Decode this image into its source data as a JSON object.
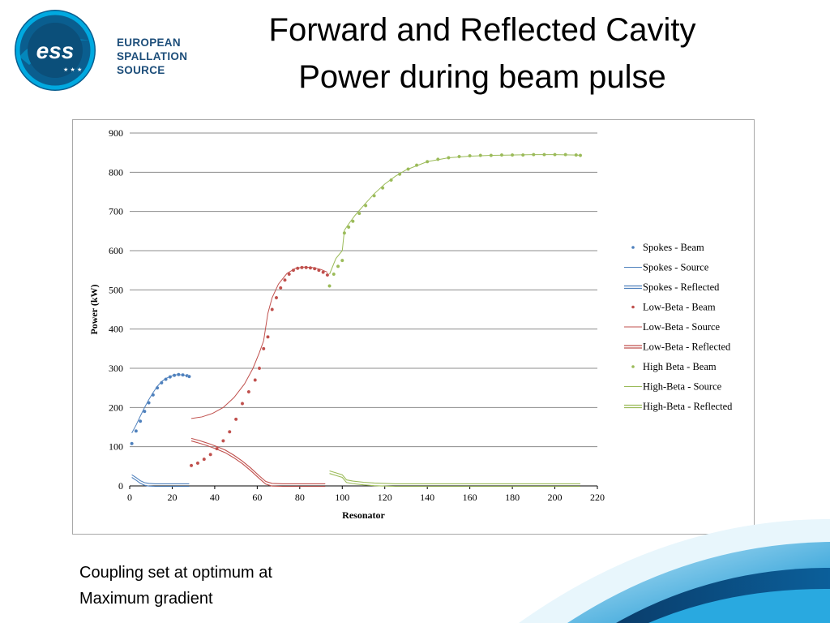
{
  "slide": {
    "title_line1": "Forward and Reflected Cavity",
    "title_line2": "Power during beam pulse",
    "caption_line1": "Coupling set at optimum at",
    "caption_line2": "Maximum gradient"
  },
  "logo": {
    "mark": "ess",
    "line1": "EUROPEAN",
    "line2": "SPALLATION",
    "line3": "SOURCE"
  },
  "colors": {
    "spokes": "#4f81bd",
    "low_beta": "#c0504d",
    "high_beta": "#9bbb59",
    "logo_blue": "#1d4e7a",
    "logo_cyan": "#00a9e0"
  },
  "chart_data": {
    "type": "scatter",
    "title": "",
    "xlabel": "Resonator",
    "ylabel": "Power (kW)",
    "xlim": [
      0,
      220
    ],
    "ylim": [
      0,
      900
    ],
    "xticks": [
      "0",
      "20",
      "40",
      "60",
      "80",
      "100",
      "120",
      "140",
      "160",
      "180",
      "200",
      "220"
    ],
    "yticks": [
      "0",
      "100",
      "200",
      "300",
      "400",
      "500",
      "600",
      "700",
      "800",
      "900"
    ],
    "grid": "horizontal",
    "legend": "right",
    "series": [
      {
        "name": "Spokes - Beam",
        "kind": "markers",
        "color": "#4f81bd",
        "x": [
          1,
          3,
          5,
          7,
          9,
          11,
          13,
          15,
          17,
          19,
          21,
          23,
          25,
          27,
          28
        ],
        "y": [
          108,
          140,
          165,
          190,
          212,
          232,
          250,
          263,
          272,
          278,
          282,
          284,
          283,
          281,
          279
        ]
      },
      {
        "name": "Spokes - Source",
        "kind": "line",
        "color": "#4f81bd",
        "x": [
          1,
          3,
          5,
          7,
          9,
          11,
          13,
          15,
          17,
          19,
          21,
          23,
          25,
          27,
          28
        ],
        "y": [
          135,
          155,
          178,
          200,
          220,
          238,
          254,
          266,
          274,
          279,
          283,
          284,
          283,
          281,
          279
        ]
      },
      {
        "name": "Spokes - Reflected",
        "kind": "double",
        "color": "#4f81bd",
        "x": [
          1,
          3,
          5,
          7,
          9,
          12,
          16,
          20,
          24,
          28
        ],
        "y": [
          25,
          18,
          10,
          5,
          3,
          2,
          2,
          2,
          2,
          2
        ]
      },
      {
        "name": "Low-Beta - Beam",
        "kind": "markers",
        "color": "#c0504d",
        "x": [
          29,
          32,
          35,
          38,
          41,
          44,
          47,
          50,
          53,
          56,
          59,
          61,
          63,
          65,
          67,
          69,
          71,
          73,
          75,
          77,
          79,
          81,
          83,
          85,
          87,
          89,
          91,
          93
        ],
        "y": [
          52,
          58,
          68,
          80,
          95,
          115,
          138,
          170,
          210,
          240,
          270,
          300,
          350,
          380,
          450,
          480,
          505,
          525,
          540,
          550,
          555,
          557,
          557,
          556,
          554,
          550,
          545,
          538
        ]
      },
      {
        "name": "Low-Beta - Source",
        "kind": "line",
        "color": "#c0504d",
        "x": [
          29,
          34,
          39,
          44,
          49,
          54,
          58,
          61,
          63,
          65,
          67,
          70,
          74,
          78,
          82,
          86,
          90,
          93
        ],
        "y": [
          172,
          176,
          185,
          200,
          225,
          260,
          300,
          340,
          370,
          440,
          480,
          515,
          542,
          555,
          558,
          557,
          552,
          545
        ]
      },
      {
        "name": "Low-Beta - Reflected",
        "kind": "double",
        "color": "#c0504d",
        "x": [
          29,
          33,
          37,
          41,
          45,
          49,
          53,
          57,
          61,
          64,
          67,
          72,
          80,
          88,
          92
        ],
        "y": [
          118,
          112,
          105,
          97,
          88,
          75,
          60,
          42,
          22,
          8,
          3,
          2,
          2,
          2,
          2
        ]
      },
      {
        "name": "High Beta - Beam",
        "kind": "markers",
        "color": "#9bbb59",
        "x": [
          94,
          96,
          98,
          100,
          101,
          103,
          105,
          108,
          111,
          115,
          119,
          123,
          127,
          131,
          135,
          140,
          145,
          150,
          155,
          160,
          165,
          170,
          175,
          180,
          185,
          190,
          195,
          200,
          205,
          210,
          212
        ],
        "y": [
          510,
          540,
          560,
          575,
          645,
          660,
          675,
          695,
          715,
          740,
          760,
          780,
          795,
          808,
          818,
          827,
          833,
          837,
          840,
          842,
          843,
          843,
          844,
          844,
          844,
          845,
          845,
          845,
          845,
          844,
          843
        ]
      },
      {
        "name": "High-Beta - Source",
        "kind": "line",
        "color": "#9bbb59",
        "x": [
          94,
          97,
          100,
          101,
          103,
          106,
          110,
          115,
          120,
          125,
          130,
          140,
          150,
          160,
          170,
          180,
          190,
          200,
          210,
          212
        ],
        "y": [
          540,
          580,
          600,
          652,
          668,
          690,
          715,
          745,
          770,
          790,
          806,
          827,
          837,
          841,
          843,
          844,
          845,
          845,
          844,
          843
        ]
      },
      {
        "name": "High-Beta - Reflected",
        "kind": "double",
        "color": "#9bbb59",
        "x": [
          94,
          97,
          100,
          102,
          105,
          110,
          115,
          120,
          125,
          140,
          160,
          180,
          200,
          212
        ],
        "y": [
          35,
          30,
          25,
          12,
          9,
          6,
          4,
          3,
          2,
          2,
          2,
          2,
          2,
          2
        ]
      }
    ]
  }
}
